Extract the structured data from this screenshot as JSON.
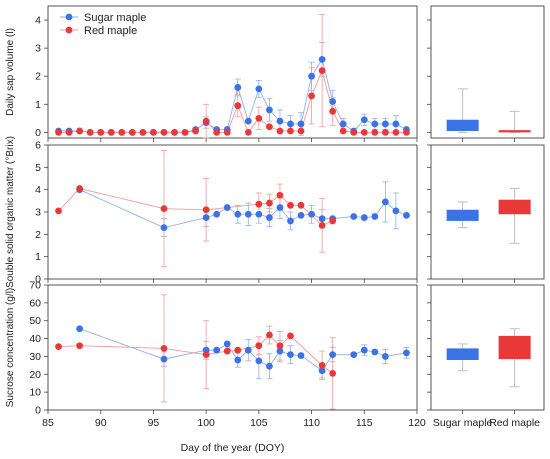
{
  "chart_data": {
    "type": "scatter",
    "xlabel": "Day of the year (DOY)",
    "xlim": [
      85,
      120
    ],
    "xticks": [
      85,
      90,
      95,
      100,
      105,
      110,
      115,
      120
    ],
    "box_categories": [
      "Sugar maple",
      "Red maple"
    ],
    "colors": {
      "sugar": "#3b73e6",
      "red": "#e83838"
    },
    "legend": {
      "placement": "top-left",
      "entries": [
        "Sugar maple",
        "Red maple"
      ]
    },
    "panels": [
      {
        "ylabel": "Daily sap volume (l)",
        "ylim": [
          -0.2,
          4.5
        ],
        "yticks": [
          0,
          1,
          2,
          3,
          4
        ],
        "series": [
          {
            "name": "Sugar maple",
            "points": [
              [
                86,
                0.05
              ],
              [
                87,
                0.05
              ],
              [
                88,
                0.05
              ],
              [
                89,
                0
              ],
              [
                90,
                0
              ],
              [
                91,
                0
              ],
              [
                92,
                0
              ],
              [
                93,
                0
              ],
              [
                94,
                0
              ],
              [
                95,
                0
              ],
              [
                96,
                0
              ],
              [
                97,
                0
              ],
              [
                98,
                0
              ],
              [
                99,
                0.1
              ],
              [
                100,
                0.35
              ],
              [
                101,
                0.1
              ],
              [
                102,
                0.1
              ],
              [
                103,
                1.6
              ],
              [
                104,
                0.4
              ],
              [
                105,
                1.55
              ],
              [
                106,
                0.8
              ],
              [
                107,
                0.4
              ],
              [
                108,
                0.3
              ],
              [
                109,
                0.3
              ],
              [
                110,
                2.0
              ],
              [
                111,
                2.6
              ],
              [
                112,
                1.1
              ],
              [
                113,
                0.3
              ],
              [
                114,
                0.05
              ],
              [
                115,
                0.45
              ],
              [
                116,
                0.3
              ],
              [
                117,
                0.3
              ],
              [
                118,
                0.3
              ],
              [
                119,
                0.1
              ]
            ],
            "errors": [
              [
                100,
                0.2
              ],
              [
                103,
                0.3
              ],
              [
                105,
                0.3
              ],
              [
                106,
                0.4
              ],
              [
                107,
                0.4
              ],
              [
                108,
                0.3
              ],
              [
                109,
                0.4
              ],
              [
                110,
                0.5
              ],
              [
                111,
                0.6
              ],
              [
                112,
                0.4
              ],
              [
                113,
                0.2
              ],
              [
                115,
                0.2
              ],
              [
                116,
                0.2
              ],
              [
                117,
                0.2
              ],
              [
                118,
                0.3
              ]
            ]
          },
          {
            "name": "Red maple",
            "points": [
              [
                86,
                0
              ],
              [
                87,
                0
              ],
              [
                88,
                0.05
              ],
              [
                89,
                0
              ],
              [
                90,
                0
              ],
              [
                91,
                0
              ],
              [
                92,
                0
              ],
              [
                93,
                0
              ],
              [
                94,
                0
              ],
              [
                95,
                0
              ],
              [
                96,
                0
              ],
              [
                97,
                0
              ],
              [
                98,
                0
              ],
              [
                99,
                0.05
              ],
              [
                100,
                0.4
              ],
              [
                101,
                0
              ],
              [
                102,
                0
              ],
              [
                103,
                0.95
              ],
              [
                104,
                0
              ],
              [
                105,
                0.5
              ],
              [
                106,
                0.2
              ],
              [
                107,
                0.05
              ],
              [
                108,
                0.05
              ],
              [
                109,
                0.05
              ],
              [
                110,
                1.3
              ],
              [
                111,
                2.2
              ],
              [
                112,
                0.75
              ],
              [
                113,
                0.05
              ],
              [
                114,
                0
              ],
              [
                115,
                0
              ],
              [
                116,
                0
              ],
              [
                117,
                0
              ],
              [
                118,
                0
              ],
              [
                119,
                0
              ]
            ],
            "errors": [
              [
                100,
                0.6
              ],
              [
                103,
                0.4
              ],
              [
                105,
                0.4
              ],
              [
                110,
                1.0
              ],
              [
                111,
                2.0
              ],
              [
                112,
                0.5
              ]
            ]
          }
        ],
        "boxes": [
          {
            "name": "Sugar maple",
            "q1": 0.05,
            "q3": 0.45,
            "min": 0,
            "max": 1.55
          },
          {
            "name": "Red maple",
            "q1": 0.0,
            "q3": 0.08,
            "min": 0,
            "max": 0.75
          }
        ]
      },
      {
        "ylabel": "Souble solid organic matter (°Brix)",
        "ylim": [
          0,
          6
        ],
        "yticks": [
          0,
          1,
          2,
          3,
          4,
          5,
          6
        ],
        "series": [
          {
            "name": "Sugar maple",
            "points": [
              [
                88,
                4.0
              ],
              [
                96,
                2.3
              ],
              [
                100,
                2.75
              ],
              [
                101,
                2.9
              ],
              [
                102,
                3.2
              ],
              [
                103,
                2.9
              ],
              [
                104,
                2.9
              ],
              [
                105,
                2.9
              ],
              [
                106,
                2.75
              ],
              [
                107,
                3.2
              ],
              [
                108,
                2.6
              ],
              [
                109,
                2.85
              ],
              [
                110,
                2.9
              ],
              [
                111,
                2.7
              ],
              [
                112,
                2.7
              ],
              [
                114,
                2.8
              ],
              [
                115,
                2.75
              ],
              [
                116,
                2.8
              ],
              [
                117,
                3.45
              ],
              [
                118,
                3.05
              ],
              [
                119,
                2.85
              ]
            ],
            "errors": [
              [
                96,
                0.4
              ],
              [
                100,
                0.4
              ],
              [
                103,
                0.4
              ],
              [
                104,
                0.5
              ],
              [
                105,
                0.4
              ],
              [
                106,
                0.4
              ],
              [
                107,
                0.5
              ],
              [
                108,
                0.4
              ],
              [
                110,
                0.4
              ],
              [
                111,
                0.4
              ],
              [
                117,
                0.9
              ],
              [
                118,
                0.8
              ]
            ]
          },
          {
            "name": "Red maple",
            "points": [
              [
                86,
                3.05
              ],
              [
                88,
                4.05
              ],
              [
                96,
                3.15
              ],
              [
                100,
                3.1
              ],
              [
                105,
                3.35
              ],
              [
                106,
                3.4
              ],
              [
                107,
                3.75
              ],
              [
                108,
                3.3
              ],
              [
                109,
                3.3
              ],
              [
                111,
                2.4
              ],
              [
                112,
                2.6
              ]
            ],
            "errors": [
              [
                96,
                2.6
              ],
              [
                100,
                1.4
              ],
              [
                105,
                0.5
              ],
              [
                106,
                0.4
              ],
              [
                107,
                0.5
              ],
              [
                111,
                1.2
              ]
            ]
          }
        ],
        "boxes": [
          {
            "name": "Sugar maple",
            "q1": 2.6,
            "q3": 3.1,
            "min": 2.3,
            "max": 3.45
          },
          {
            "name": "Red maple",
            "q1": 2.9,
            "q3": 3.55,
            "min": 1.6,
            "max": 4.05
          }
        ]
      },
      {
        "ylabel": "Sucrose concentration (g/l)",
        "ylim": [
          0,
          70
        ],
        "yticks": [
          0,
          10,
          20,
          30,
          40,
          50,
          60,
          70
        ],
        "series": [
          {
            "name": "Sugar maple",
            "points": [
              [
                88,
                45.5
              ],
              [
                96,
                28.5
              ],
              [
                100,
                33.5
              ],
              [
                101,
                33.5
              ],
              [
                102,
                37
              ],
              [
                103,
                28
              ],
              [
                104,
                33.5
              ],
              [
                105,
                27.5
              ],
              [
                106,
                24.5
              ],
              [
                107,
                33
              ],
              [
                108,
                31
              ],
              [
                109,
                30.5
              ],
              [
                111,
                22
              ],
              [
                112,
                31
              ],
              [
                114,
                31
              ],
              [
                115,
                33.5
              ],
              [
                116,
                32.5
              ],
              [
                117,
                30
              ],
              [
                119,
                32
              ]
            ],
            "errors": [
              [
                96,
                4
              ],
              [
                100,
                5
              ],
              [
                103,
                4
              ],
              [
                104,
                6
              ],
              [
                105,
                10
              ],
              [
                106,
                7
              ],
              [
                107,
                6
              ],
              [
                108,
                5
              ],
              [
                111,
                4
              ],
              [
                112,
                4
              ],
              [
                115,
                3
              ],
              [
                117,
                4
              ],
              [
                119,
                3
              ]
            ]
          },
          {
            "name": "Red maple",
            "points": [
              [
                86,
                35.5
              ],
              [
                88,
                36
              ],
              [
                96,
                34.5
              ],
              [
                100,
                31
              ],
              [
                102,
                33
              ],
              [
                103,
                33.5
              ],
              [
                105,
                36
              ],
              [
                106,
                42
              ],
              [
                107,
                36
              ],
              [
                108,
                41.5
              ],
              [
                111,
                25
              ],
              [
                112,
                20.5
              ]
            ],
            "errors": [
              [
                96,
                30
              ],
              [
                100,
                19
              ],
              [
                105,
                5
              ],
              [
                106,
                5
              ],
              [
                107,
                8
              ],
              [
                111,
                8
              ],
              [
                112,
                20
              ]
            ]
          }
        ],
        "boxes": [
          {
            "name": "Sugar maple",
            "q1": 28,
            "q3": 34.5,
            "min": 22,
            "max": 37
          },
          {
            "name": "Red maple",
            "q1": 28.5,
            "q3": 41.5,
            "min": 13,
            "max": 45.5
          }
        ]
      }
    ]
  }
}
